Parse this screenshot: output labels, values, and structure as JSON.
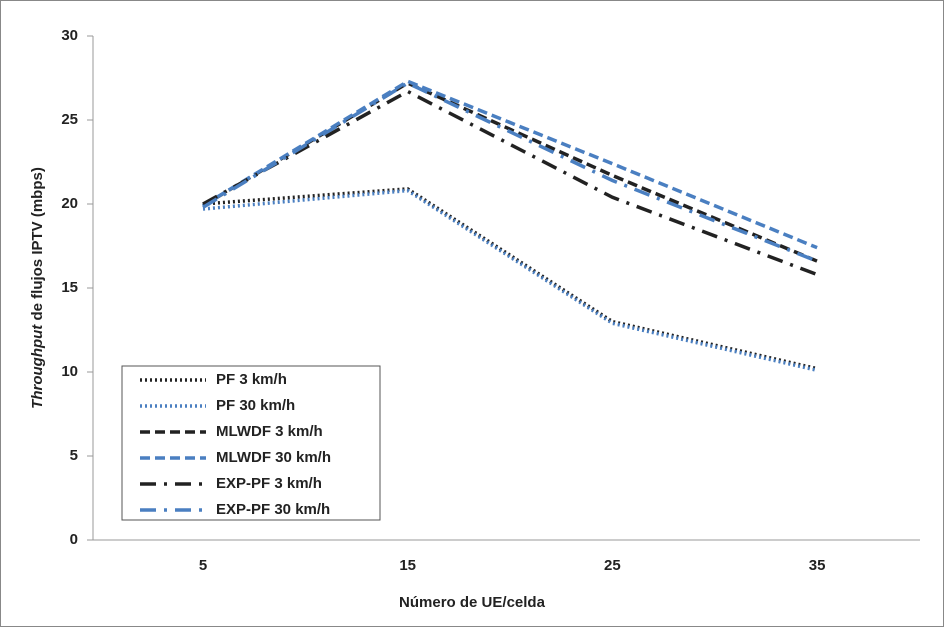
{
  "chart_data": {
    "type": "line",
    "y_label": {
      "italic": "Throughput",
      "rest": "de flujos IPTV (mbps)"
    },
    "x_label": "Número de UE/celda",
    "categories": [
      "5",
      "15",
      "25",
      "35"
    ],
    "ylim": [
      0,
      30
    ],
    "yticks": [
      0,
      5,
      10,
      15,
      20,
      25,
      30
    ],
    "legend": "bottom-left",
    "series": [
      {
        "name": "PF 3 km/h",
        "color": "#222222",
        "dash": "dotted",
        "values": [
          20.0,
          20.9,
          13.0,
          10.2
        ]
      },
      {
        "name": "PF 30 km/h",
        "color": "#4a7fc1",
        "dash": "dotted",
        "values": [
          19.7,
          20.8,
          12.9,
          10.1
        ]
      },
      {
        "name": "MLWDF 3 km/h",
        "color": "#222222",
        "dash": "dashed",
        "values": [
          19.9,
          27.2,
          21.7,
          16.6
        ]
      },
      {
        "name": "MLWDF 30 km/h",
        "color": "#4a7fc1",
        "dash": "dashed",
        "values": [
          19.9,
          27.3,
          22.4,
          17.4
        ]
      },
      {
        "name": "EXP-PF 3 km/h",
        "color": "#222222",
        "dash": "dashdot",
        "values": [
          20.0,
          26.7,
          20.4,
          15.8
        ]
      },
      {
        "name": "EXP-PF 30 km/h",
        "color": "#4a7fc1",
        "dash": "dashdot",
        "values": [
          19.8,
          27.2,
          21.4,
          16.6
        ]
      }
    ]
  }
}
